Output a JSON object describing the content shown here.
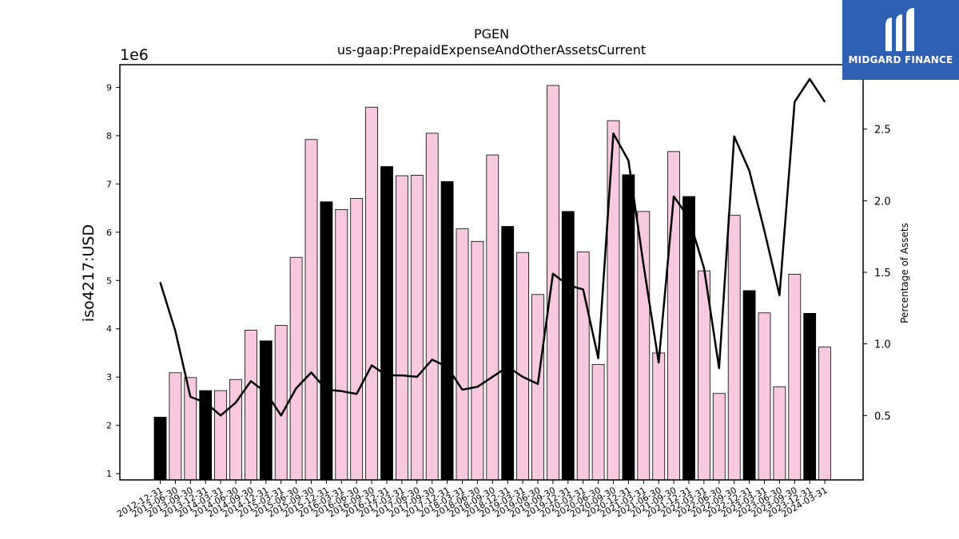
{
  "chart_data": {
    "type": "bar",
    "title": "PGEN",
    "subtitle": "us-gaap:PrepaidExpenseAndOtherAssetsCurrent",
    "ylabel": "iso4217:USD",
    "y_offset_text": "1e6",
    "y2label": "Percentage of Assets",
    "ylim": [
      0.87,
      9.47
    ],
    "y2lim": [
      0.05,
      2.95
    ],
    "yticks": [
      1,
      2,
      3,
      4,
      5,
      6,
      7,
      8,
      9
    ],
    "y2ticks": [
      0.5,
      1.0,
      1.5,
      2.0,
      2.5
    ],
    "grid": false,
    "categories": [
      "2012-12-31",
      "2013-06-30",
      "2013-09-30",
      "2013-12-31",
      "2014-03-31",
      "2014-06-30",
      "2014-09-30",
      "2014-12-31",
      "2015-03-31",
      "2015-06-30",
      "2015-09-30",
      "2015-12-31",
      "2016-03-31",
      "2016-06-30",
      "2016-09-30",
      "2016-12-31",
      "2017-03-31",
      "2017-06-30",
      "2017-09-30",
      "2017-12-31",
      "2018-03-31",
      "2018-06-30",
      "2018-09-30",
      "2018-12-31",
      "2019-03-31",
      "2019-06-30",
      "2019-09-30",
      "2019-12-31",
      "2020-03-31",
      "2020-06-30",
      "2020-09-30",
      "2020-12-31",
      "2021-03-31",
      "2021-06-30",
      "2021-09-30",
      "2021-12-31",
      "2022-03-31",
      "2022-06-30",
      "2022-09-30",
      "2022-12-31",
      "2023-03-31",
      "2023-06-30",
      "2023-09-30",
      "2023-12-31",
      "2024-03-31"
    ],
    "series": [
      {
        "type": "bar",
        "values": [
          2.17,
          3.09,
          2.99,
          2.72,
          2.72,
          2.95,
          3.97,
          3.75,
          4.07,
          5.48,
          7.92,
          6.63,
          6.47,
          6.7,
          8.59,
          7.36,
          7.17,
          7.18,
          8.05,
          7.05,
          6.07,
          5.81,
          7.6,
          6.12,
          5.58,
          4.71,
          9.04,
          6.43,
          5.59,
          3.26,
          8.31,
          7.19,
          6.43,
          3.5,
          7.67,
          6.74,
          5.2,
          2.66,
          6.35,
          4.79,
          4.33,
          2.8,
          5.13,
          4.32,
          3.62
        ],
        "color_year_end": "#000000",
        "color_quarter": "#f9c9e0"
      },
      {
        "type": "line",
        "axis": "right",
        "color": "#000000",
        "values": [
          1.43,
          1.09,
          0.63,
          0.59,
          0.5,
          0.59,
          0.74,
          0.66,
          0.5,
          0.69,
          0.8,
          0.68,
          0.67,
          0.65,
          0.85,
          0.78,
          0.78,
          0.77,
          0.89,
          0.84,
          0.68,
          0.7,
          0.77,
          0.84,
          0.77,
          0.72,
          1.49,
          1.41,
          1.38,
          0.9,
          2.47,
          2.28,
          1.55,
          0.87,
          2.03,
          1.88,
          1.53,
          0.83,
          2.45,
          2.21,
          1.79,
          1.34,
          2.69,
          2.85,
          2.69
        ]
      }
    ]
  },
  "logo": {
    "text": "MIDGARD FINANCE",
    "bg_color": "#2f5fb3"
  }
}
